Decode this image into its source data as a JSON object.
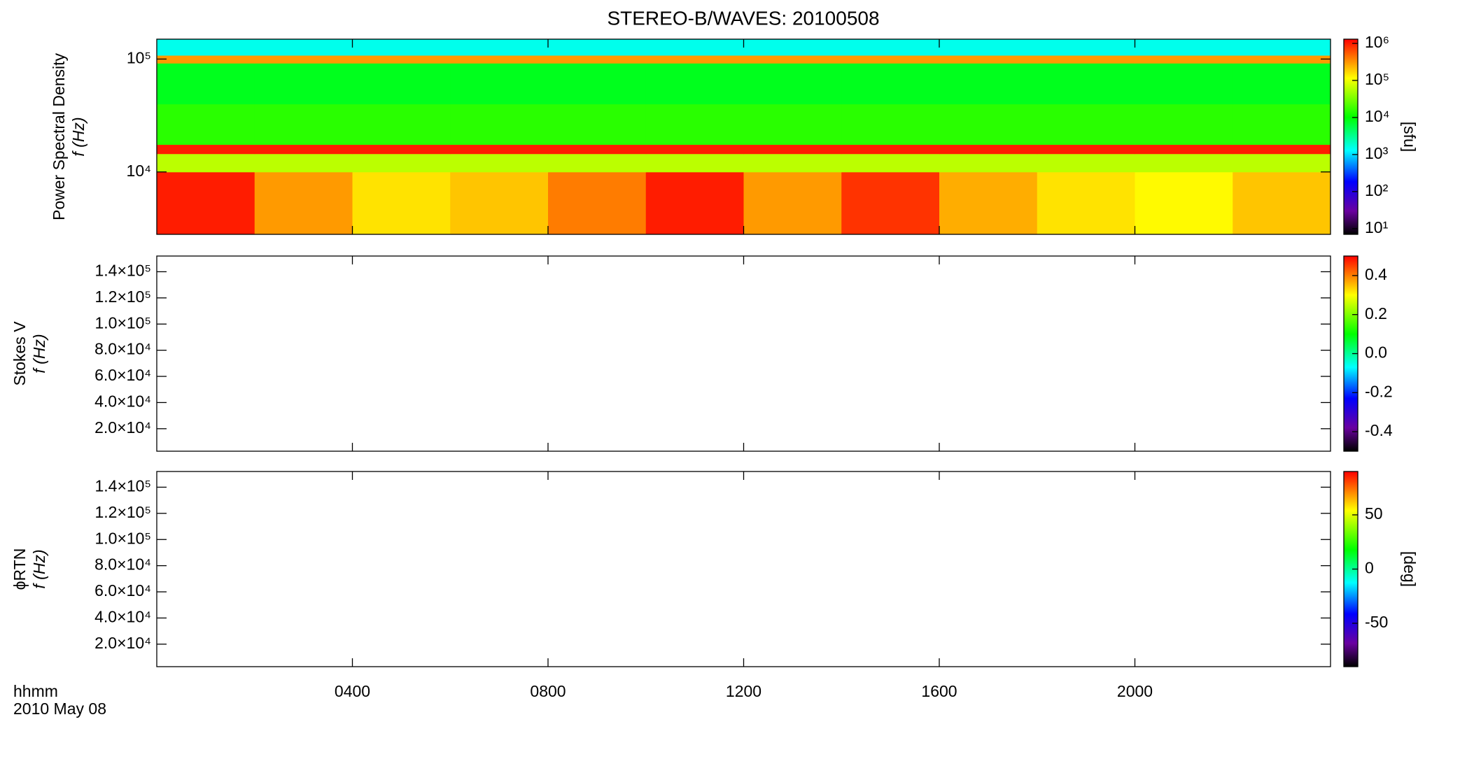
{
  "chart_data": [
    {
      "type": "heatmap",
      "title": "STEREO-B/WAVES: 20100508",
      "ylabel": [
        "Power Spectral Density",
        "f (Hz)"
      ],
      "ylog": true,
      "ylim": [
        2800,
        150000
      ],
      "yticks": [
        {
          "value": 10000,
          "label": "10⁴"
        },
        {
          "value": 100000,
          "label": "10⁵"
        }
      ],
      "x_edges": [
        0,
        2,
        4,
        6,
        8,
        10,
        12,
        14,
        16,
        18,
        20,
        22,
        24
      ],
      "y_edges": [
        2800,
        10000,
        14500,
        17500,
        40000,
        92000,
        108000,
        150000
      ],
      "z": [
        [
          1000000,
          300000,
          150000,
          200000,
          400000,
          1000000,
          300000,
          800000,
          250000,
          150000,
          120000,
          200000
        ],
        [
          60000,
          60000,
          60000,
          60000,
          60000,
          60000,
          60000,
          60000,
          60000,
          60000,
          60000,
          60000
        ],
        [
          1000000,
          1000000,
          1000000,
          1000000,
          1000000,
          1000000,
          1000000,
          1000000,
          1000000,
          1000000,
          1000000,
          1000000
        ],
        [
          15000,
          15000,
          15000,
          15000,
          15000,
          15000,
          15000,
          15000,
          15000,
          15000,
          15000,
          15000
        ],
        [
          8000,
          8000,
          8000,
          8000,
          8000,
          8000,
          8000,
          8000,
          8000,
          8000,
          8000,
          8000
        ],
        [
          300000,
          300000,
          300000,
          300000,
          300000,
          300000,
          300000,
          300000,
          300000,
          300000,
          300000,
          300000
        ],
        [
          1500,
          1500,
          1500,
          1500,
          1500,
          1500,
          1500,
          1500,
          1500,
          1500,
          1500,
          1500
        ]
      ],
      "zlog": true,
      "zlim": [
        7,
        1300000
      ],
      "zticks": [
        {
          "value": 10,
          "label": "10¹"
        },
        {
          "value": 100,
          "label": "10²"
        },
        {
          "value": 1000,
          "label": "10³"
        },
        {
          "value": 10000,
          "label": "10⁴"
        },
        {
          "value": 100000,
          "label": "10⁵"
        },
        {
          "value": 1000000,
          "label": "10⁶"
        }
      ],
      "zlabel": "[sfu]"
    },
    {
      "type": "heatmap",
      "ylabel": [
        "Stokes V",
        "f (Hz)"
      ],
      "ylim": [
        2800,
        152000
      ],
      "yticks": [
        {
          "value": 20000,
          "label": "2.0×10⁴"
        },
        {
          "value": 40000,
          "label": "4.0×10⁴"
        },
        {
          "value": 60000,
          "label": "6.0×10⁴"
        },
        {
          "value": 80000,
          "label": "8.0×10⁴"
        },
        {
          "value": 100000,
          "label": "1.0×10⁵"
        },
        {
          "value": 120000,
          "label": "1.2×10⁵"
        },
        {
          "value": 140000,
          "label": "1.4×10⁵"
        }
      ],
      "zlim": [
        -0.5,
        0.5
      ],
      "zticks": [
        -0.4,
        -0.2,
        {
          "value": 0,
          "label": "0.0"
        },
        0.2,
        0.4
      ]
    },
    {
      "type": "heatmap",
      "ylabel": [
        "ϕRTN",
        "f (Hz)"
      ],
      "ylim": [
        2800,
        152000
      ],
      "yticks": [
        {
          "value": 20000,
          "label": "2.0×10⁴"
        },
        {
          "value": 40000,
          "label": "4.0×10⁴"
        },
        {
          "value": 60000,
          "label": "6.0×10⁴"
        },
        {
          "value": 80000,
          "label": "8.0×10⁴"
        },
        {
          "value": 100000,
          "label": "1.0×10⁵"
        },
        {
          "value": 120000,
          "label": "1.2×10⁵"
        },
        {
          "value": 140000,
          "label": "1.4×10⁵"
        }
      ],
      "zlim": [
        -90,
        90
      ],
      "zticks": [
        -50,
        0,
        50
      ],
      "zlabel": "[deg]",
      "xlim": [
        0,
        24
      ],
      "xticks": [
        {
          "value": 4,
          "label": "0400"
        },
        {
          "value": 8,
          "label": "0800"
        },
        {
          "value": 12,
          "label": "1200"
        },
        {
          "value": 16,
          "label": "1600"
        },
        {
          "value": 20,
          "label": "2000"
        }
      ],
      "xlabel": "hhmm",
      "xsublabel": "2010 May 08"
    }
  ]
}
